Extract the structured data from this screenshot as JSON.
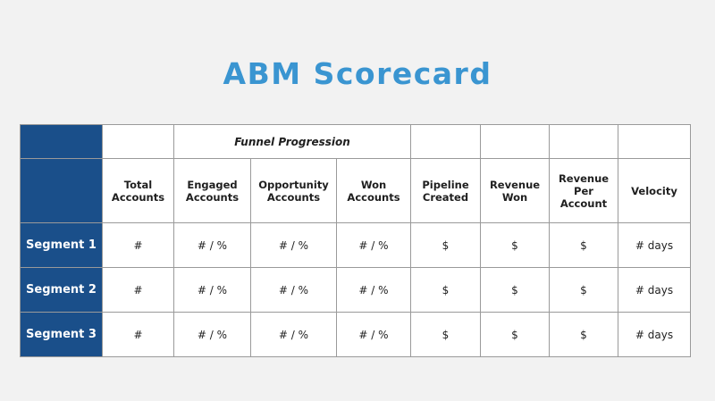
{
  "title": "ABM Scorecard",
  "funnel_label": "Funnel Progression",
  "columns": [
    "Total Accounts",
    "Engaged Accounts",
    "Opportunity Accounts",
    "Won Accounts",
    "Pipeline Created",
    "Revenue Won",
    "Revenue Per Account",
    "Velocity"
  ],
  "rows": [
    {
      "label": "Segment 1",
      "cells": [
        "#",
        "# / %",
        "# / %",
        "# / %",
        "$",
        "$",
        "$",
        "# days"
      ]
    },
    {
      "label": "Segment 2",
      "cells": [
        "#",
        "# / %",
        "# / %",
        "# / %",
        "$",
        "$",
        "$",
        "# days"
      ]
    },
    {
      "label": "Segment 3",
      "cells": [
        "#",
        "# / %",
        "# / %",
        "# / %",
        "$",
        "$",
        "$",
        "# days"
      ]
    }
  ],
  "colors": {
    "title": "#3a95d1",
    "header_fill": "#1a4f8a",
    "background": "#f2f2f2"
  }
}
